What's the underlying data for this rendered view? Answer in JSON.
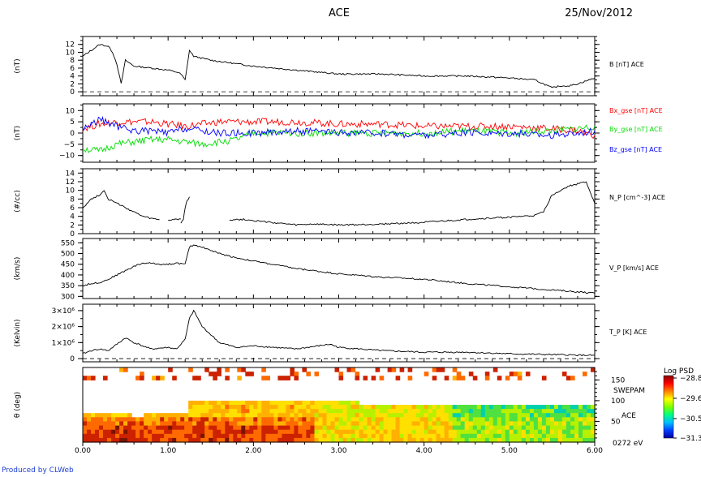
{
  "header": {
    "title": "ACE",
    "date": "25/Nov/2012"
  },
  "credit": "Produced by CLWeb",
  "colors": {
    "black": "#000000",
    "red": "#ff0000",
    "green": "#00dd00",
    "blue": "#0000ff",
    "credit": "#1f3fd0"
  },
  "x_ticks": [
    "0.00",
    "1.00",
    "2.00",
    "3.00",
    "4.00",
    "5.00",
    "6.00"
  ],
  "chart_data": [
    {
      "type": "line",
      "ylabel": "(nT)",
      "ylim": [
        -1,
        14
      ],
      "yticks": [
        "0",
        "2",
        "4",
        "6",
        "8",
        "10",
        "12"
      ],
      "xlim": [
        0,
        6
      ],
      "series": [
        {
          "name": "B [nT] ACE",
          "color": "#000000",
          "x": [
            0.0,
            0.1,
            0.2,
            0.3,
            0.35,
            0.4,
            0.45,
            0.5,
            0.6,
            0.8,
            1.0,
            1.1,
            1.15,
            1.2,
            1.25,
            1.3,
            1.5,
            2.0,
            2.5,
            3.0,
            3.5,
            4.0,
            4.5,
            5.0,
            5.3,
            5.5,
            5.6,
            5.7,
            5.8,
            6.0
          ],
          "y": [
            9.0,
            10.5,
            12.0,
            11.5,
            10.0,
            7.0,
            2.0,
            8.0,
            6.5,
            6.0,
            5.5,
            5.0,
            4.5,
            3.0,
            10.5,
            9.0,
            8.0,
            6.5,
            5.5,
            4.5,
            4.5,
            4.0,
            4.0,
            3.5,
            3.0,
            1.0,
            1.5,
            1.5,
            2.0,
            3.5
          ]
        }
      ],
      "reference_line": 0
    },
    {
      "type": "line",
      "ylabel": "(nT)",
      "ylim": [
        -13,
        13
      ],
      "yticks": [
        "−10",
        "−5",
        "0",
        "5",
        "10"
      ],
      "xlim": [
        0,
        6
      ],
      "series": [
        {
          "name": "Bx_gse [nT] ACE",
          "color": "#ff0000",
          "x": [
            0.0,
            0.2,
            0.4,
            0.6,
            0.8,
            1.0,
            1.2,
            1.4,
            1.6,
            1.8,
            2.0,
            2.5,
            3.0,
            3.5,
            4.0,
            4.5,
            5.0,
            5.5,
            5.8,
            6.0
          ],
          "y": [
            2,
            4,
            5,
            5,
            5,
            4,
            3,
            4,
            5,
            5,
            5,
            5,
            4,
            4,
            3,
            3,
            3,
            2,
            1,
            -1
          ]
        },
        {
          "name": "By_gse [nT] ACE",
          "color": "#00dd00",
          "x": [
            0.0,
            0.2,
            0.4,
            0.6,
            0.8,
            1.0,
            1.2,
            1.4,
            1.6,
            1.8,
            2.0,
            2.5,
            3.0,
            3.5,
            4.0,
            4.5,
            5.0,
            5.5,
            5.8,
            6.0
          ],
          "y": [
            -7,
            -8,
            -5,
            -4,
            -3,
            -3,
            -4,
            -5,
            -4,
            -3,
            0,
            0,
            0,
            0,
            0,
            1,
            0,
            1,
            2,
            3
          ]
        },
        {
          "name": "Bz_gse [nT] ACE",
          "color": "#0000ff",
          "x": [
            0.0,
            0.2,
            0.4,
            0.6,
            0.8,
            1.0,
            1.2,
            1.4,
            1.6,
            1.8,
            2.0,
            2.5,
            3.0,
            3.5,
            4.0,
            4.5,
            5.0,
            5.5,
            5.8,
            6.0
          ],
          "y": [
            2,
            6,
            3,
            1,
            1,
            0,
            2,
            1,
            0,
            0,
            0,
            1,
            0,
            0,
            -1,
            0,
            0,
            -1,
            0,
            1
          ]
        }
      ]
    },
    {
      "type": "line",
      "ylabel": "(#/cc)",
      "ylim": [
        0,
        15
      ],
      "yticks": [
        "0",
        "2",
        "4",
        "6",
        "8",
        "10",
        "12",
        "14"
      ],
      "xlim": [
        0,
        6
      ],
      "series": [
        {
          "name": "N_P [cm^-3] ACE",
          "color": "#000000",
          "segments": [
            {
              "x": [
                0.0,
                0.1,
                0.2,
                0.25,
                0.3,
                0.4,
                0.5,
                0.6,
                0.7,
                0.8,
                0.9
              ],
              "y": [
                6,
                8,
                9,
                10,
                8,
                7,
                6,
                5,
                4,
                3.5,
                3.2
              ]
            },
            {
              "x": [
                1.0,
                1.1,
                1.15
              ],
              "y": [
                3.2,
                3.3,
                3.4
              ]
            },
            {
              "x": [
                1.15,
                1.18,
                1.2,
                1.22,
                1.25
              ],
              "y": [
                2.5,
                3.5,
                6.0,
                7.5,
                8.5
              ]
            },
            {
              "x": [
                1.72,
                1.9,
                2.1,
                2.3,
                2.5,
                2.7,
                3.0,
                3.3,
                3.6,
                4.0,
                4.3,
                4.6,
                5.0,
                5.3,
                5.4,
                5.5,
                5.6,
                5.7,
                5.8,
                5.9,
                6.0
              ],
              "y": [
                3.2,
                3.3,
                2.8,
                2.4,
                2.0,
                2.2,
                2.0,
                2.1,
                2.3,
                2.6,
                3.0,
                3.4,
                3.8,
                4.2,
                5.0,
                9.0,
                10.0,
                11.0,
                11.5,
                12.0,
                7.0
              ]
            }
          ]
        }
      ]
    },
    {
      "type": "line",
      "ylabel": "(km/s)",
      "ylim": [
        290,
        570
      ],
      "yticks": [
        "300",
        "350",
        "400",
        "450",
        "500",
        "550"
      ],
      "xlim": [
        0,
        6
      ],
      "series": [
        {
          "name": "V_P [km/s] ACE",
          "color": "#000000",
          "x": [
            0.0,
            0.1,
            0.2,
            0.3,
            0.4,
            0.5,
            0.6,
            0.7,
            0.8,
            0.9,
            1.0,
            1.1,
            1.2,
            1.25,
            1.3,
            1.4,
            1.6,
            1.8,
            2.0,
            2.5,
            3.0,
            3.5,
            4.0,
            4.5,
            5.0,
            5.5,
            6.0
          ],
          "y": [
            350,
            360,
            365,
            380,
            400,
            420,
            440,
            455,
            455,
            450,
            450,
            455,
            450,
            530,
            540,
            530,
            500,
            480,
            465,
            430,
            405,
            390,
            380,
            360,
            345,
            330,
            315
          ]
        }
      ]
    },
    {
      "type": "line",
      "ylabel": "(Kelvin)",
      "ylim": [
        -200000,
        3400000
      ],
      "ytick_values": [
        0,
        1000000,
        2000000,
        3000000
      ],
      "yticks": [
        "0",
        "1×10⁶",
        "2×10⁶",
        "3×10⁶"
      ],
      "xlim": [
        0,
        6
      ],
      "series": [
        {
          "name": "T_P [K] ACE",
          "color": "#000000",
          "x": [
            0.0,
            0.1,
            0.2,
            0.3,
            0.4,
            0.5,
            0.6,
            0.8,
            1.0,
            1.1,
            1.2,
            1.25,
            1.3,
            1.35,
            1.4,
            1.5,
            1.6,
            1.8,
            2.0,
            2.5,
            2.9,
            3.0,
            3.5,
            4.0,
            4.5,
            5.0,
            5.5,
            6.0
          ],
          "y": [
            300000,
            500000,
            600000,
            500000,
            900000,
            1300000,
            1000000,
            600000,
            700000,
            600000,
            1200000,
            2500000,
            3000000,
            2500000,
            2000000,
            1500000,
            1000000,
            700000,
            800000,
            600000,
            900000,
            700000,
            500000,
            400000,
            400000,
            300000,
            250000,
            200000
          ]
        }
      ],
      "reference_line": 0
    },
    {
      "type": "heatmap",
      "ylabel": "θ (deg)",
      "ylim": [
        0,
        180
      ],
      "yticks": [
        "50",
        "100",
        "150"
      ],
      "right_labels": [
        "SWEPAM",
        "ACE",
        "0272 eV"
      ],
      "xlim": [
        0,
        6
      ],
      "colorbar": {
        "title": "Log PSD",
        "ticks": [
          "−28.8",
          "−29.6",
          "−30.5",
          "−31.3"
        ],
        "range": [
          -31.3,
          -28.8
        ]
      }
    }
  ]
}
